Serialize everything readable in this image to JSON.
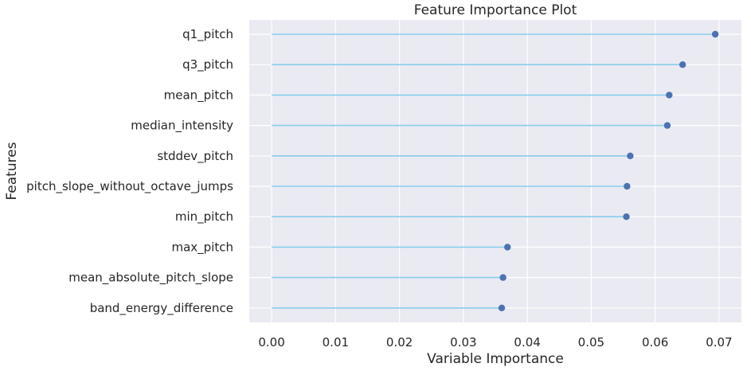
{
  "chart_data": {
    "type": "lollipop",
    "title": "Feature Importance Plot",
    "xlabel": "Variable Importance",
    "ylabel": "Features",
    "xlim": [
      -0.0035,
      0.0735
    ],
    "x_ticks": [
      "0.00",
      "0.01",
      "0.02",
      "0.03",
      "0.04",
      "0.05",
      "0.06",
      "0.07"
    ],
    "x_tick_values": [
      0.0,
      0.01,
      0.02,
      0.03,
      0.04,
      0.05,
      0.06,
      0.07
    ],
    "grid": true,
    "categories": [
      "q1_pitch",
      "q3_pitch",
      "mean_pitch",
      "median_intensity",
      "stddev_pitch",
      "pitch_slope_without_octave_jumps",
      "min_pitch",
      "max_pitch",
      "mean_absolute_pitch_slope",
      "band_energy_difference"
    ],
    "values": [
      0.0694,
      0.0643,
      0.0622,
      0.0619,
      0.0561,
      0.0556,
      0.0555,
      0.0369,
      0.0362,
      0.036
    ],
    "colors": {
      "stem": "#87ceeb",
      "marker": "#4c72b0",
      "plot_background": "#eaeaf2",
      "grid": "#ffffff",
      "text": "#262626"
    }
  }
}
